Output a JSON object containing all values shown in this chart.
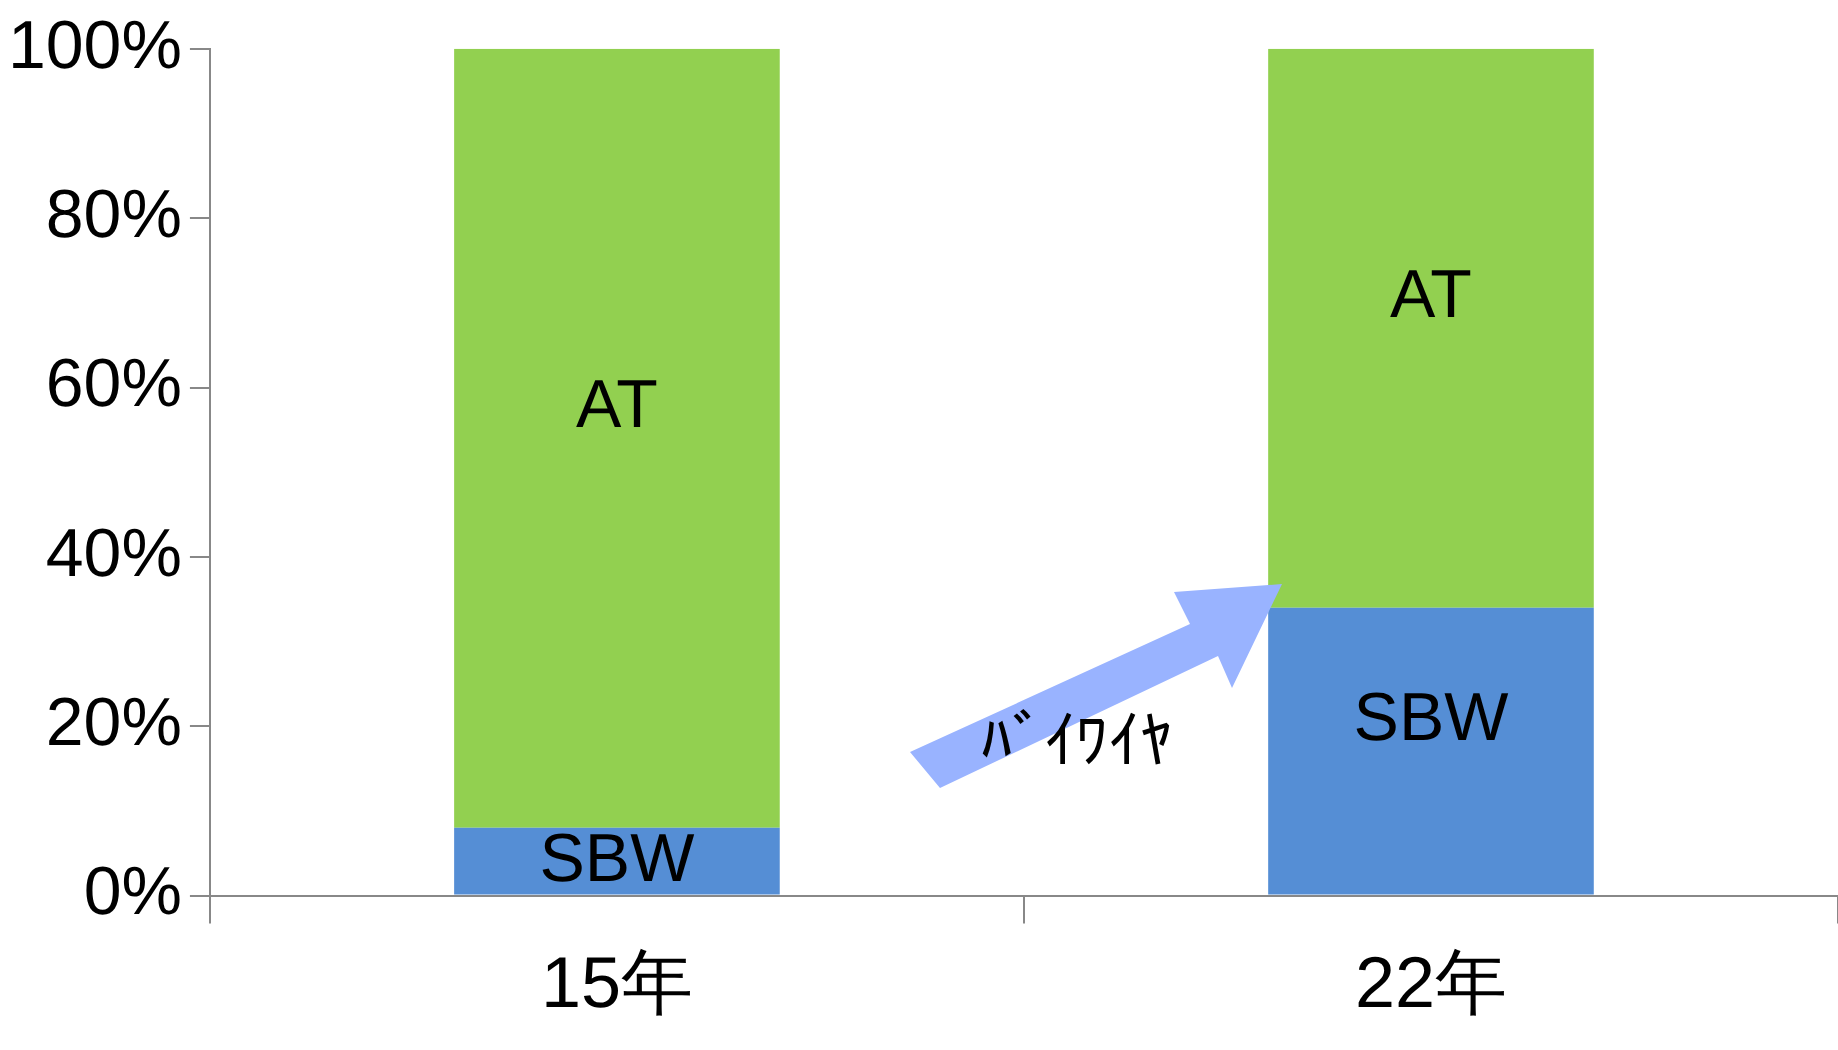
{
  "chart_data": {
    "type": "bar",
    "stacked": true,
    "categories": [
      "15年",
      "22年"
    ],
    "series": [
      {
        "name": "SBW",
        "color": "#558ed5",
        "values": [
          8,
          34
        ]
      },
      {
        "name": "AT",
        "color": "#92d050",
        "values": [
          92,
          66
        ]
      }
    ],
    "ylim": [
      0,
      100
    ],
    "yticks": [
      {
        "value": 0,
        "label": "0%"
      },
      {
        "value": 20,
        "label": "20%"
      },
      {
        "value": 40,
        "label": "40%"
      },
      {
        "value": 60,
        "label": "60%"
      },
      {
        "value": 80,
        "label": "80%"
      },
      {
        "value": 100,
        "label": "100%"
      }
    ],
    "grid": false,
    "legend": false,
    "annotations": [
      "ﾊﾞｲﾜｲﾔ"
    ]
  }
}
